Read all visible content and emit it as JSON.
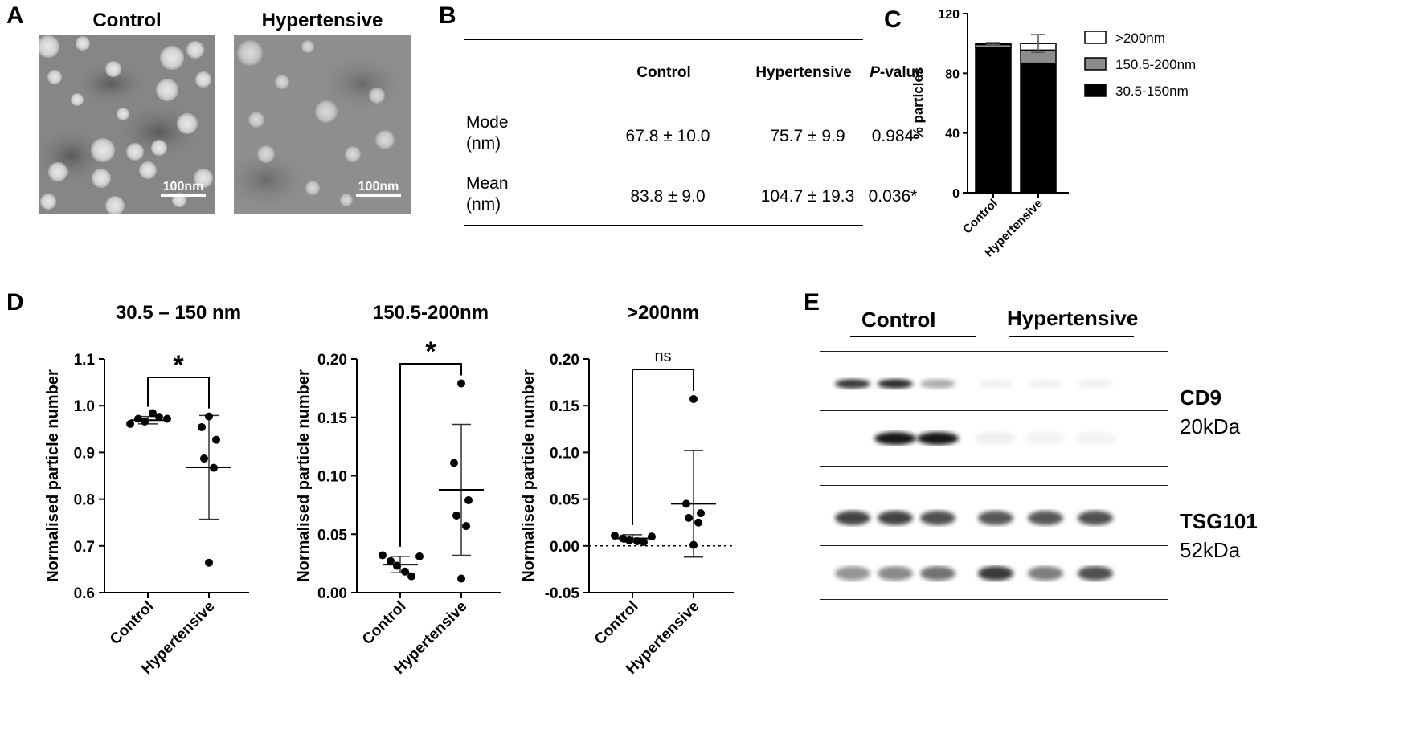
{
  "panel_labels": {
    "a": "A",
    "b": "B",
    "c": "C",
    "d": "D",
    "e": "E"
  },
  "micrographs": [
    {
      "title": "Control",
      "scale_bar": "100nm"
    },
    {
      "title": "Hypertensive",
      "scale_bar": "100nm"
    }
  ],
  "table": {
    "headers": [
      "",
      "Control",
      "Hypertensive",
      "P-value"
    ],
    "header_p_italic": "P",
    "header_p_rest": "-value",
    "rows": [
      {
        "label_line1": "Mode",
        "label_line2": "(nm)",
        "control": "67.8 ± 10.0",
        "hypertensive": "75.7 ± 9.9",
        "p": "0.984"
      },
      {
        "label_line1": "Mean",
        "label_line2": "(nm)",
        "control": "83.8 ± 9.0",
        "hypertensive": "104.7 ± 19.3",
        "p": "0.036*"
      }
    ]
  },
  "chart_data": [
    {
      "id": "C",
      "type": "bar",
      "stacked": true,
      "categories": [
        "Control",
        "Hypertensive"
      ],
      "ylabel": "% particles",
      "ylim": [
        0,
        120
      ],
      "yticks": [
        0,
        40,
        80,
        120
      ],
      "series": [
        {
          "name": "30.5-150nm",
          "values": [
            97.0,
            86.8
          ],
          "color": "#000000"
        },
        {
          "name": "150.5-200nm",
          "values": [
            2.3,
            8.8
          ],
          "color": "#8c8c8c"
        },
        {
          "name": ">200nm",
          "values": [
            0.7,
            4.4
          ],
          "color": "#ffffff"
        }
      ],
      "error_top": [
        100.6,
        106.0
      ],
      "legend_position": "right"
    },
    {
      "id": "D1",
      "type": "scatter",
      "title": "30.5 – 150 nm",
      "ylabel": "Normalised particle number",
      "categories": [
        "Control",
        "Hypertensive"
      ],
      "ylim": [
        0.6,
        1.1
      ],
      "yticks": [
        "0.6",
        "0.7",
        "0.8",
        "0.9",
        "1.0",
        "1.1"
      ],
      "points": [
        [
          0.961,
          0.972,
          0.966,
          0.984,
          0.976,
          0.972
        ],
        [
          0.977,
          0.954,
          0.927,
          0.887,
          0.867,
          0.664
        ]
      ],
      "mean": [
        0.969,
        0.868
      ],
      "sd": [
        0.008,
        0.111
      ],
      "significance": "*"
    },
    {
      "id": "D2",
      "type": "scatter",
      "title": "150.5-200nm",
      "ylabel": "Normalised particle number",
      "categories": [
        "Control",
        "Hypertensive"
      ],
      "ylim": [
        0,
        0.2
      ],
      "yticks": [
        "0.00",
        "0.05",
        "0.10",
        "0.15",
        "0.20"
      ],
      "points": [
        [
          0.032,
          0.027,
          0.023,
          0.018,
          0.014,
          0.031
        ],
        [
          0.179,
          0.111,
          0.079,
          0.066,
          0.057,
          0.012
        ]
      ],
      "mean": [
        0.024,
        0.088
      ],
      "sd": [
        0.007,
        0.056
      ],
      "significance": "*"
    },
    {
      "id": "D3",
      "type": "scatter",
      "title": ">200nm",
      "ylabel": "Normalised particle number",
      "categories": [
        "Control",
        "Hypertensive"
      ],
      "ylim": [
        -0.05,
        0.2
      ],
      "yticks": [
        "-0.05",
        "0.00",
        "0.05",
        "0.10",
        "0.15",
        "0.20"
      ],
      "zero_line": true,
      "points": [
        [
          0.011,
          0.008,
          0.006,
          0.005,
          0.004,
          0.01
        ],
        [
          0.157,
          0.045,
          0.035,
          0.03,
          0.025,
          0.001
        ]
      ],
      "mean": [
        0.008,
        0.045
      ],
      "sd": [
        0.004,
        0.057
      ],
      "significance": "ns"
    }
  ],
  "western_blot": {
    "group_control": "Control",
    "group_hypertensive": "Hypertensive",
    "cd9_name": "CD9",
    "cd9_kda": "20kDa",
    "tsg_name": "TSG101",
    "tsg_kda": "52kDa",
    "blots": [
      {
        "lanes": [
          0.85,
          0.9,
          0.35,
          0.06,
          0.06,
          0.06
        ]
      },
      {
        "lanes": [
          0.0,
          1.0,
          1.0,
          0.07,
          0.05,
          0.05
        ]
      },
      {
        "lanes": [
          0.8,
          0.8,
          0.75,
          0.72,
          0.72,
          0.75
        ]
      },
      {
        "lanes": [
          0.45,
          0.5,
          0.6,
          0.85,
          0.55,
          0.75
        ]
      }
    ]
  }
}
